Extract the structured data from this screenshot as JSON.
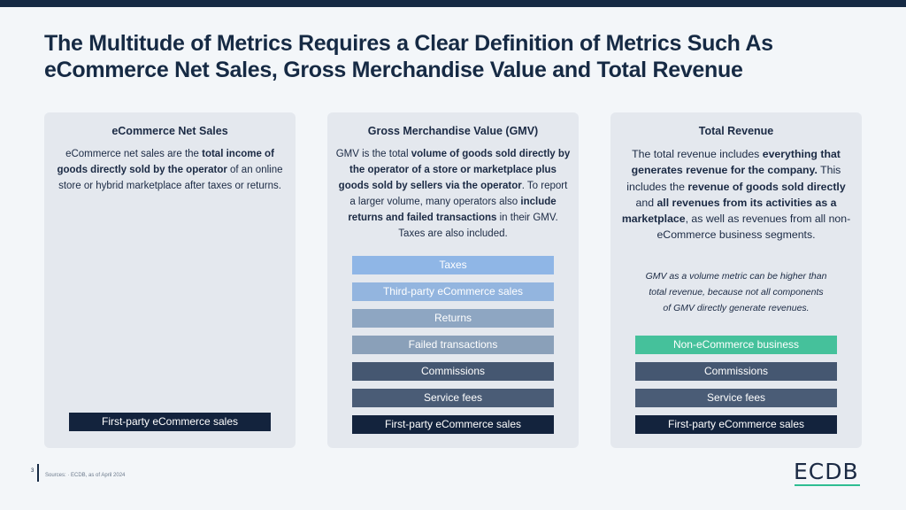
{
  "title": {
    "line1": "The Multitude of Metrics Requires a Clear Definition of Metrics Such As",
    "line2": "eCommerce Net Sales, Gross Merchandise Value and Total Revenue"
  },
  "cards": [
    {
      "heading": "eCommerce Net Sales",
      "text": [
        {
          "t": "eCommerce net sales are the ",
          "b": false
        },
        {
          "t": "total income of goods directly sold by the operator",
          "b": true
        },
        {
          "t": " of an online store or hybrid marketplace after taxes or returns.",
          "b": false
        }
      ],
      "bars": [
        "First-party eCommerce sales"
      ]
    },
    {
      "heading": "Gross Merchandise Value (GMV)",
      "text": [
        {
          "t": "GMV is the total ",
          "b": false
        },
        {
          "t": "volume of goods sold directly by the operator of a store or marketplace plus goods sold by sellers via the operator",
          "b": true
        },
        {
          "t": ". To report a larger volume, many operators also ",
          "b": false
        },
        {
          "t": "include returns and failed transactions",
          "b": true
        },
        {
          "t": " in their GMV. Taxes are also included.",
          "b": false
        }
      ],
      "bars": [
        "Taxes",
        "Third-party eCommerce sales",
        "Returns",
        "Failed transactions",
        "Commissions",
        "Service fees",
        "First-party eCommerce sales"
      ]
    },
    {
      "heading": "Total Revenue",
      "text": [
        {
          "t": "The total revenue includes ",
          "b": false
        },
        {
          "t": "everything that generates revenue for the company.",
          "b": true
        },
        {
          "t": " This includes the ",
          "b": false
        },
        {
          "t": "revenue of goods sold directly",
          "b": true
        },
        {
          "t": " and ",
          "b": false
        },
        {
          "t": "all revenues from its activities as a marketplace",
          "b": true
        },
        {
          "t": ", as well as revenues from all non-eCommerce business segments.",
          "b": false
        }
      ],
      "note": [
        "GMV as a volume metric can be higher than",
        "total revenue, because not all components",
        "of GMV directly generate revenues."
      ],
      "bars": [
        "Non-eCommerce business",
        "Commissions",
        "Service fees",
        "First-party eCommerce sales"
      ]
    }
  ],
  "footer": {
    "page_number": "3",
    "source": "Sources: · ECDB, as of April 2024"
  },
  "logo": "ECDB",
  "colors": {
    "navy": "#13233d",
    "green_accent": "#2ebd92",
    "light_blue": "#8fb6e6",
    "card_bg": "#e4e8ee"
  }
}
